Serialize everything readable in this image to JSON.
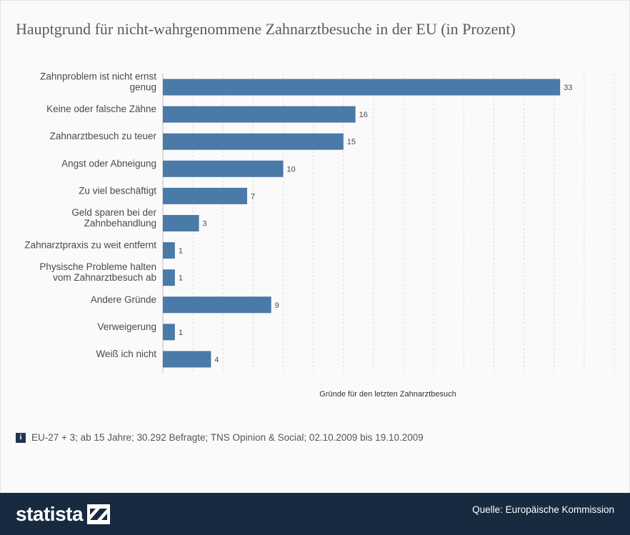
{
  "title": "Hauptgrund für nicht-wahrgenommene Zahnarztbesuche in der EU (in Prozent)",
  "chart_data": {
    "type": "bar",
    "orientation": "horizontal",
    "categories": [
      [
        "Zahnproblem ist nicht ernst",
        "genug"
      ],
      [
        "Keine oder falsche Zähne"
      ],
      [
        "Zahnarztbesuch zu teuer"
      ],
      [
        "Angst oder Abneigung"
      ],
      [
        "Zu viel beschäftigt"
      ],
      [
        "Geld sparen bei der",
        "Zahnbehandlung"
      ],
      [
        "Zahnarztpraxis zu weit entfernt"
      ],
      [
        "Physische Probleme halten",
        "vom Zahnarztbesuch ab"
      ],
      [
        "Andere Gründe"
      ],
      [
        "Verweigerung"
      ],
      [
        "Weiß ich nicht"
      ]
    ],
    "values": [
      33,
      16,
      15,
      10,
      7,
      3,
      1,
      1,
      9,
      1,
      4
    ],
    "xlabel": "Gründe für den letzten Zahnarztbesuch",
    "xlim": [
      0,
      37.5
    ],
    "grid": true,
    "bar_color": "#4a7aa8"
  },
  "info_text": "EU-27 + 3; ab 15 Jahre; 30.292 Befragte; TNS Opinion & Social; 02.10.2009 bis 19.10.2009",
  "info_icon": "i",
  "footer": {
    "brand": "statista",
    "brand_icon": "statista-logo-icon",
    "source": "Quelle: Europäische Kommission"
  },
  "colors": {
    "footer_bg": "#182a40",
    "bar": "#4a7aa8",
    "grid": "#dddddd"
  }
}
